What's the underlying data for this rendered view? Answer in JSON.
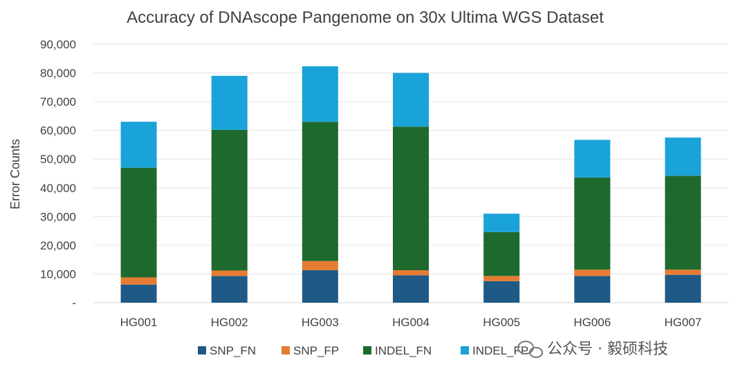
{
  "chart_data": {
    "type": "bar",
    "stacked": true,
    "title": "Accuracy of DNAscope Pangenome on 30x Ultima WGS Dataset",
    "xlabel": "",
    "ylabel": "Error Counts",
    "categories": [
      "HG001",
      "HG002",
      "HG003",
      "HG004",
      "HG005",
      "HG006",
      "HG007"
    ],
    "ylim": [
      0,
      90000
    ],
    "yticks": [
      0,
      10000,
      20000,
      30000,
      40000,
      50000,
      60000,
      70000,
      80000,
      90000
    ],
    "ytick_labels": [
      "-",
      "10,000",
      "20,000",
      "30,000",
      "40,000",
      "50,000",
      "60,000",
      "70,000",
      "80,000",
      "90,000"
    ],
    "grid": true,
    "legend_position": "bottom",
    "series": [
      {
        "name": "SNP_FN",
        "color": "#1f5a87",
        "values": [
          6300,
          9300,
          11300,
          9500,
          7500,
          9300,
          9700
        ]
      },
      {
        "name": "SNP_FP",
        "color": "#e67b33",
        "values": [
          2500,
          1900,
          3200,
          1800,
          1800,
          2200,
          1800
        ]
      },
      {
        "name": "INDEL_FN",
        "color": "#1e6a2e",
        "values": [
          38200,
          49000,
          48500,
          50000,
          15300,
          32100,
          32700
        ]
      },
      {
        "name": "INDEL_FP",
        "color": "#1aa3d8",
        "values": [
          16000,
          18800,
          19300,
          18700,
          6400,
          13100,
          13300
        ]
      }
    ]
  },
  "watermark": {
    "text": "公众号 · 毅硕科技",
    "icon": "wechat-icon"
  }
}
